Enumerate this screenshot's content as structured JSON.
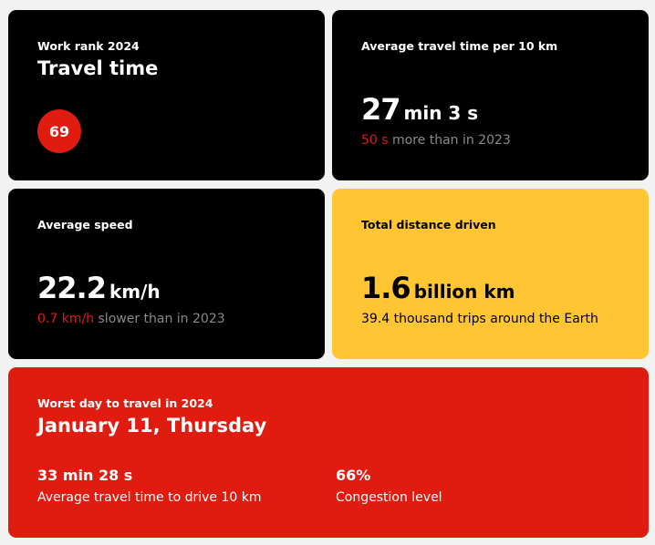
{
  "work_rank": {
    "label": "Work rank 2024",
    "title": "Travel time",
    "rank": "69"
  },
  "avg_time": {
    "label": "Average travel time per 10 km",
    "value": "27",
    "unit": "min 3 s",
    "delta": "50 s",
    "delta_text": " more than in 2023"
  },
  "avg_speed": {
    "label": "Average speed",
    "value": "22.2",
    "unit": "km/h",
    "delta": "0.7 km/h",
    "delta_text": " slower than in 2023"
  },
  "distance": {
    "label": "Total distance driven",
    "value": "1.6",
    "unit": "billion km",
    "sub": "39.4 thousand trips around the Earth"
  },
  "worst_day": {
    "label": "Worst day to travel in 2024",
    "title": "January 11, Thursday",
    "time_value": "33 min 28 s",
    "time_label": "Average travel time to drive 10 km",
    "congestion_value": "66%",
    "congestion_label": "Congestion level"
  },
  "colors": {
    "accent": "#e01b10",
    "yellow": "#ffc533",
    "card": "#000000"
  }
}
